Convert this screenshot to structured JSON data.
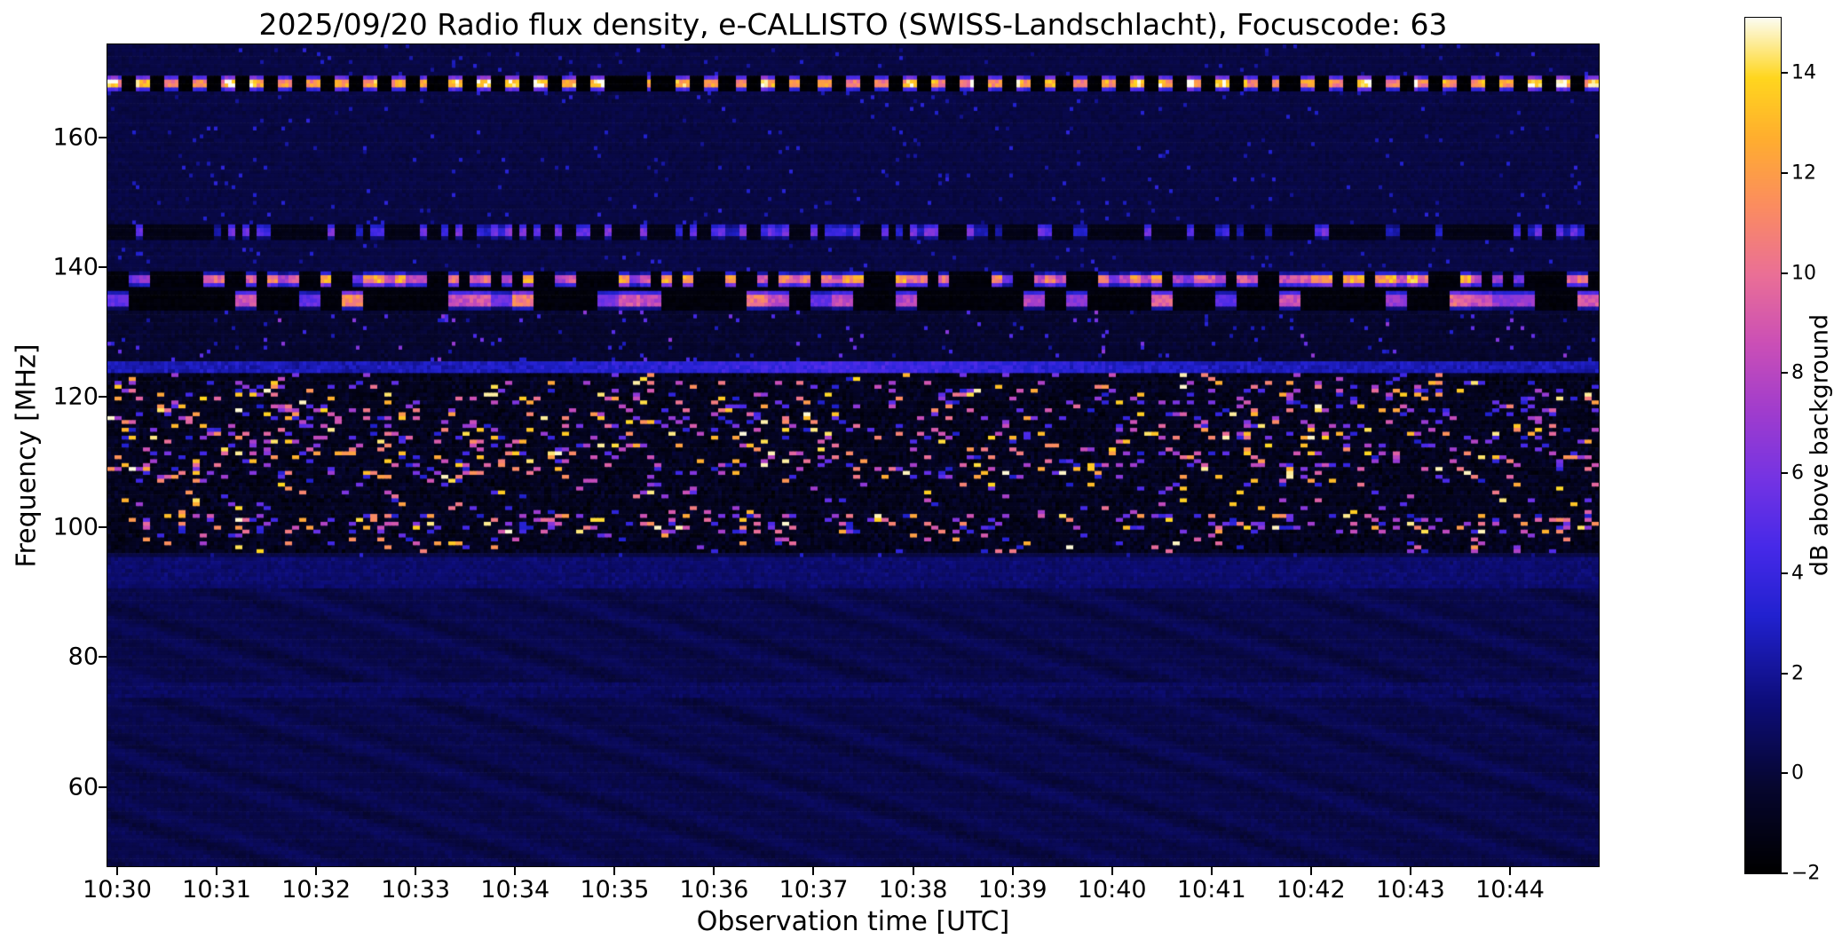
{
  "chart_data": {
    "type": "heatmap",
    "title": "2025/09/20  Radio flux density, e-CALLISTO (SWISS-Landschlacht), Focuscode: 63",
    "xlabel": "Observation time [UTC]",
    "ylabel": "Frequency [MHz]",
    "x_ticks": [
      "10:30",
      "10:31",
      "10:32",
      "10:33",
      "10:34",
      "10:35",
      "10:36",
      "10:37",
      "10:38",
      "10:39",
      "10:40",
      "10:41",
      "10:42",
      "10:43",
      "10:44"
    ],
    "x_range": [
      "10:30:00",
      "10:45:00"
    ],
    "x_span_minutes": 15,
    "y_ticks": [
      160,
      140,
      120,
      100,
      80,
      60
    ],
    "y_range_mhz": [
      47.8,
      174.3
    ],
    "background_note": "dark navy-blue spectrogram background near 0 dB with bright horizontal interference bands",
    "colorbar": {
      "label": "dB above background",
      "range": [
        -2,
        15.1
      ],
      "tick_values": [
        -2,
        0,
        2,
        4,
        6,
        8,
        10,
        12,
        14
      ],
      "tick_labels": [
        "−2",
        "0",
        "2",
        "4",
        "6",
        "8",
        "10",
        "12",
        "14"
      ],
      "colormap_stops": [
        [
          0.0,
          "#000000"
        ],
        [
          0.1,
          "#06062e"
        ],
        [
          0.2,
          "#0d0d7a"
        ],
        [
          0.3,
          "#2121cf"
        ],
        [
          0.38,
          "#4629e8"
        ],
        [
          0.46,
          "#7433e3"
        ],
        [
          0.54,
          "#a03ccd"
        ],
        [
          0.62,
          "#cb4fb6"
        ],
        [
          0.7,
          "#ea6f96"
        ],
        [
          0.78,
          "#fb8c60"
        ],
        [
          0.86,
          "#ffae2e"
        ],
        [
          0.93,
          "#ffd61e"
        ],
        [
          1.0,
          "#fcfcf0"
        ]
      ]
    },
    "features": [
      {
        "name": "beacon-dash-band-168MHz",
        "kind": "dash",
        "f_lo": 167.3,
        "f_hi": 169.3,
        "bg": -1.8,
        "period": 8,
        "duty": 0.4,
        "missing": 0.05,
        "dash_len": 3,
        "vmin": 7,
        "vmax": 15
      },
      {
        "name": "speckle-band-146MHz",
        "kind": "dash",
        "f_lo": 144.4,
        "f_hi": 146.6,
        "bg": -1.2,
        "density": 0.32,
        "dash_len": 2,
        "vmin": 2,
        "vmax": 6.5
      },
      {
        "name": "dash-band-138MHz",
        "kind": "dash",
        "f_lo": 137.1,
        "f_hi": 139.1,
        "bg": -1.6,
        "density": 0.5,
        "dash_len": 3,
        "vmin": 5,
        "vmax": 13
      },
      {
        "name": "dark-gap-136MHz",
        "kind": "line",
        "f_lo": 136.3,
        "f_hi": 137.1,
        "base": -1.4,
        "noise": 0.25
      },
      {
        "name": "segment-band-135MHz",
        "kind": "dash",
        "f_lo": 133.6,
        "f_hi": 136.3,
        "bg": -1.6,
        "density": 0.3,
        "dash_len": 6,
        "vmin": 5,
        "vmax": 11
      },
      {
        "name": "sparse-speckle-126-133MHz",
        "kind": "speckle",
        "f_lo": 125.3,
        "f_hi": 133.6,
        "bg": -0.3,
        "bg_noise": 0.5,
        "density": 0.03,
        "seg_len": 1,
        "vmin": 2,
        "vmax": 7
      },
      {
        "name": "drift-line-124MHz",
        "kind": "line",
        "f_lo": 123.7,
        "f_hi": 125.3,
        "base": 2.6,
        "noise": 1.0,
        "boost_center_min": 7.5,
        "boost_width_min": 2.5,
        "boost_amp": 1.6
      },
      {
        "name": "active-speckle-band-96-123MHz",
        "kind": "speckle",
        "f_lo": 96.2,
        "f_hi": 123.7,
        "bg": -0.9,
        "bg_noise": 1.0,
        "density": 0.07,
        "seg_len": 2,
        "vmin": 3,
        "vmax": 15,
        "hot_zones": [
          {
            "f_lo": 107.5,
            "f_hi": 122.5,
            "density": 0.16
          },
          {
            "f_lo": 103.0,
            "f_hi": 106.5,
            "density": 0.05
          },
          {
            "f_lo": 99.3,
            "f_hi": 101.8,
            "density": 0.22
          }
        ]
      },
      {
        "name": "blue-band-93MHz",
        "kind": "line",
        "f_lo": 90.8,
        "f_hi": 95.6,
        "base": 1.1,
        "noise": 0.6
      },
      {
        "name": "faint-band-75MHz",
        "kind": "line",
        "f_lo": 73.6,
        "f_hi": 76.0,
        "base": 0.8,
        "noise": 0.5
      },
      {
        "name": "quiet-wavy-region-below-90MHz",
        "kind": "waves",
        "f_lo": 47.0,
        "f_hi": 90.8,
        "base": 0.35,
        "noise": 0.33,
        "amp": 0.4
      }
    ]
  }
}
